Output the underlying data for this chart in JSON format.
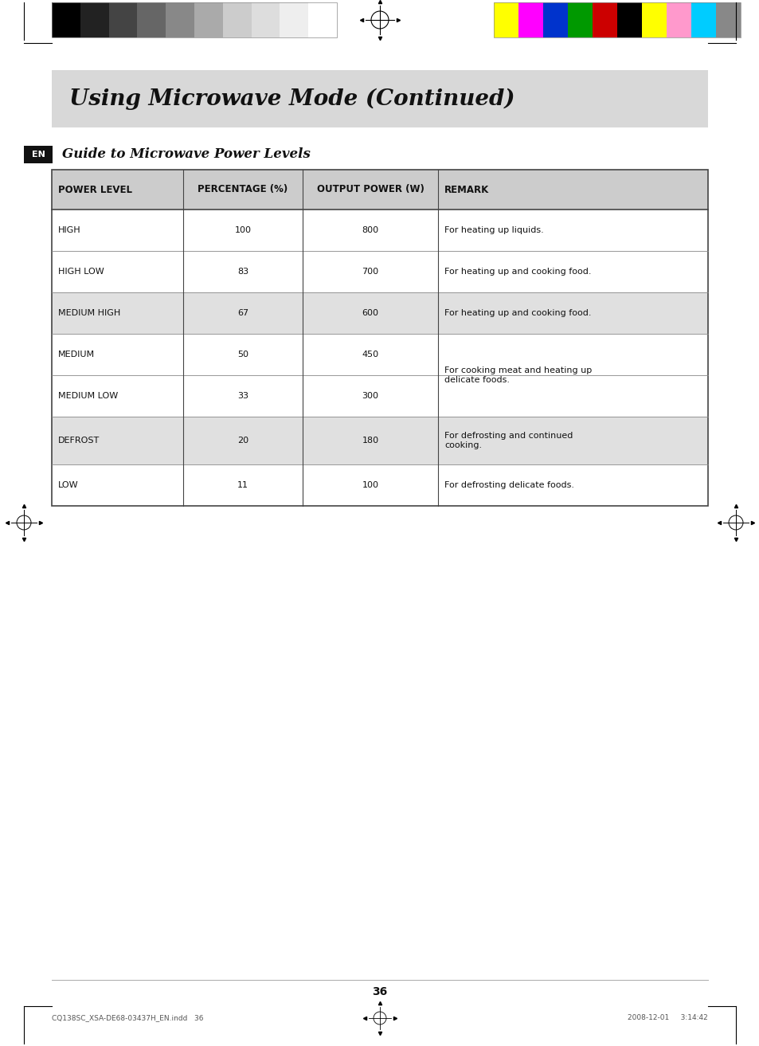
{
  "page_bg": "#ffffff",
  "header_bar_color": "#d8d8d8",
  "header_title": "Using Microwave Mode (Continued)",
  "section_label": "EN",
  "section_label_bg": "#111111",
  "section_label_color": "#ffffff",
  "guide_title": "Guide to Microwave Power Levels",
  "table_header_bg": "#cccccc",
  "table_row_bg_white": "#ffffff",
  "table_row_bg_gray": "#e0e0e0",
  "table_border_color": "#444444",
  "col_headers": [
    "POWER LEVEL",
    "PERCENTAGE (%)",
    "OUTPUT POWER (W)",
    "REMARK"
  ],
  "rows": [
    {
      "level": "HIGH",
      "pct": "100",
      "power": "800",
      "remark": "For heating up liquids.",
      "shaded": false
    },
    {
      "level": "HIGH LOW",
      "pct": "83",
      "power": "700",
      "remark": "For heating up and cooking food.",
      "shaded": false
    },
    {
      "level": "MEDIUM HIGH",
      "pct": "67",
      "power": "600",
      "remark": "For heating up and cooking food.",
      "shaded": true
    },
    {
      "level": "MEDIUM",
      "pct": "50",
      "power": "450",
      "remark": "",
      "shaded": false
    },
    {
      "level": "MEDIUM LOW",
      "pct": "33",
      "power": "300",
      "remark": "",
      "shaded": false
    },
    {
      "level": "DEFROST",
      "pct": "20",
      "power": "180",
      "remark": "For defrosting and continued\ncooking.",
      "shaded": true
    },
    {
      "level": "LOW",
      "pct": "11",
      "power": "100",
      "remark": "For defrosting delicate foods.",
      "shaded": false
    }
  ],
  "merged_remark_34": "For cooking meat and heating up\ndelicate foods.",
  "page_number": "36",
  "footer_left": "CQ138SC_XSA-DE68-03437H_EN.indd   36",
  "footer_right": "2008-12-01     3:14:42",
  "cb_left_colors": [
    "#000000",
    "#222222",
    "#444444",
    "#666666",
    "#888888",
    "#aaaaaa",
    "#cccccc",
    "#dddddd",
    "#eeeeee",
    "#ffffff"
  ],
  "cb_right_colors": [
    "#ffff00",
    "#ff00ff",
    "#0033cc",
    "#009900",
    "#cc0000",
    "#000000",
    "#ffff00",
    "#ff99cc",
    "#00ccff",
    "#888888"
  ]
}
